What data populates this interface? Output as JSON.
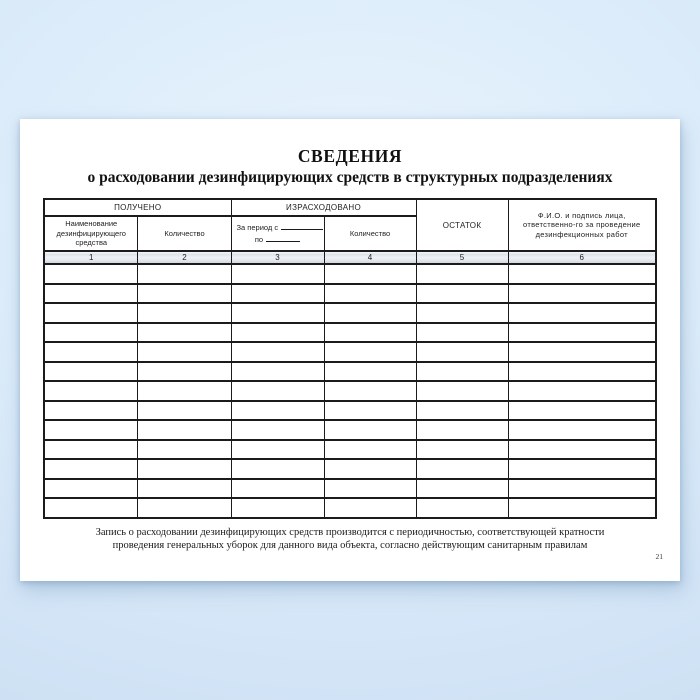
{
  "background": {
    "tint_center": "#e9f4fd",
    "tint_edge": "#c9ddf1",
    "sheet_color": "#ffffff",
    "grid_color": "#1b1b1b"
  },
  "document": {
    "title": "СВЕДЕНИЯ",
    "subtitle": "о расходовании дезинфицирующих средств в структурных подразделениях",
    "footer_note_line1": "Запись о расходовании дезинфицирующих средств производится с периодичностью, соответствующей кратности",
    "footer_note_line2": "проведения генеральных уборок для данного вида объекта, согласно действующим санитарным правилам",
    "page_number": "21"
  },
  "table": {
    "column_groups": [
      {
        "label": "ПОЛУЧЕНО",
        "columns": 2
      },
      {
        "label": "ИЗРАСХОДОВАНО",
        "columns": 2
      }
    ],
    "columns": [
      {
        "number": "1",
        "header": "Наименование дезинфицирующего средства"
      },
      {
        "number": "2",
        "header": "Количество"
      },
      {
        "number": "3",
        "header_line1": "За период с",
        "header_line2": "по"
      },
      {
        "number": "4",
        "header": "Количество"
      },
      {
        "number": "5",
        "header": "ОСТАТОК"
      },
      {
        "number": "6",
        "header": "Ф.И.О. и подпись лица, ответственно-го за проведение дезинфекционных работ"
      }
    ],
    "empty_row_count": 13
  }
}
